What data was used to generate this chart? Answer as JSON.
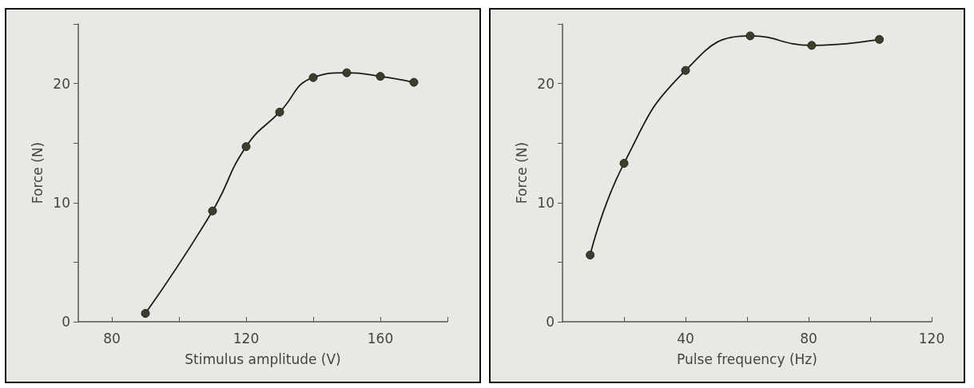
{
  "chart_data": [
    {
      "type": "line",
      "xlabel": "Stimulus amplitude (V)",
      "ylabel": "Force (N)",
      "x": [
        90,
        110,
        120,
        130,
        140,
        150,
        160,
        170
      ],
      "series": [
        {
          "color": "#3d3d2a",
          "values": [
            0.7,
            9.3,
            14.7,
            17.6,
            20.5,
            20.9,
            20.6,
            20.1
          ]
        }
      ],
      "xlim": [
        70,
        180
      ],
      "xticks": [
        80,
        {
          "value": 100,
          "label": null
        },
        120,
        {
          "value": 140,
          "label": null
        },
        160,
        {
          "value": 180,
          "label": null
        }
      ],
      "ylim": [
        0,
        25
      ],
      "yticks": [
        0,
        {
          "value": 5,
          "label": null
        },
        10,
        {
          "value": 15,
          "label": null
        },
        20,
        {
          "value": 25,
          "label": null
        }
      ],
      "grid": false,
      "marker": "circle",
      "line_style": "solid"
    },
    {
      "type": "line",
      "xlabel": "Pulse frequency (Hz)",
      "ylabel": "Force (N)",
      "x": [
        9,
        20,
        40,
        61,
        81,
        103
      ],
      "series": [
        {
          "color": "#3d3d2a",
          "values": [
            5.6,
            13.3,
            21.1,
            24.0,
            23.2,
            23.7
          ]
        }
      ],
      "xlim": [
        0,
        120
      ],
      "xticks": [
        {
          "value": 20,
          "label": null
        },
        40,
        {
          "value": 60,
          "label": null
        },
        80,
        {
          "value": 100,
          "label": null
        },
        120
      ],
      "ylim": [
        0,
        25
      ],
      "yticks": [
        0,
        {
          "value": 5,
          "label": null
        },
        10,
        {
          "value": 15,
          "label": null
        },
        20,
        {
          "value": 25,
          "label": null
        }
      ],
      "grid": false,
      "marker": "circle",
      "line_style": "solid"
    }
  ]
}
